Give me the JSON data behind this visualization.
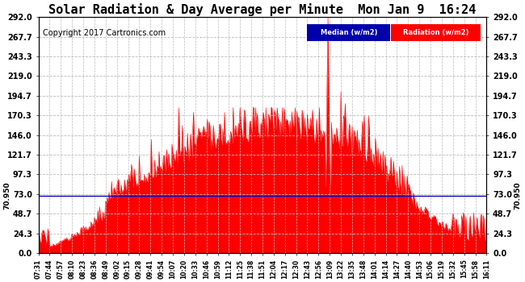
{
  "title": "Solar Radiation & Day Average per Minute  Mon Jan 9  16:24",
  "copyright": "Copyright 2017 Cartronics.com",
  "median_value": 70.95,
  "ymax": 292.0,
  "yticks": [
    0.0,
    24.3,
    48.7,
    73.0,
    97.3,
    121.7,
    146.0,
    170.3,
    194.7,
    219.0,
    243.3,
    267.7,
    292.0
  ],
  "ytick_labels": [
    "0.0",
    "24.3",
    "48.7",
    "73.0",
    "97.3",
    "121.7",
    "146.0",
    "170.3",
    "194.7",
    "219.0",
    "243.3",
    "267.7",
    "292.0"
  ],
  "background_color": "#ffffff",
  "plot_bg_color": "#ffffff",
  "radiation_color": "#ff0000",
  "median_color": "#0000cc",
  "grid_color": "#bbbbbb",
  "title_fontsize": 11,
  "copyright_fontsize": 7,
  "legend_median_bg": "#0000aa",
  "legend_radiation_bg": "#cc0000",
  "legend_text_color": "#ffffff",
  "xtick_labels": [
    "07:31",
    "07:44",
    "07:57",
    "08:10",
    "08:23",
    "08:36",
    "08:49",
    "09:02",
    "09:15",
    "09:28",
    "09:41",
    "09:54",
    "10:07",
    "10:20",
    "10:33",
    "10:46",
    "10:59",
    "11:12",
    "11:25",
    "11:38",
    "11:51",
    "12:04",
    "12:17",
    "12:30",
    "12:43",
    "12:56",
    "13:09",
    "13:22",
    "13:35",
    "13:48",
    "14:01",
    "14:14",
    "14:27",
    "14:40",
    "14:53",
    "15:06",
    "15:19",
    "15:32",
    "15:45",
    "15:58",
    "16:11"
  ],
  "median_label": "Median (w/m2)",
  "radiation_label": "Radiation (w/m2)",
  "median_rotated_label": "70.950"
}
